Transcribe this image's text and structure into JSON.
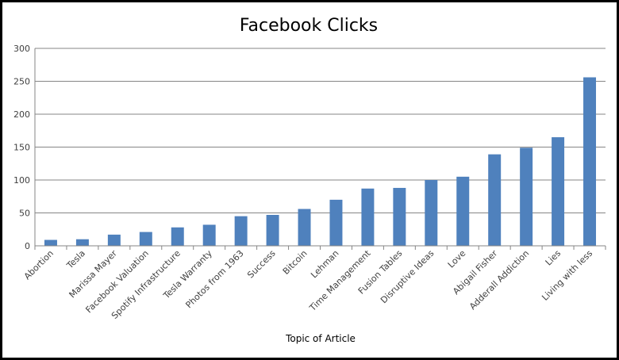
{
  "chart_data": {
    "type": "bar",
    "title": "Facebook Clicks",
    "xlabel": "Topic of Article",
    "ylabel": "",
    "ylim": [
      0,
      300
    ],
    "yticks": [
      0,
      50,
      100,
      150,
      200,
      250,
      300
    ],
    "grid": true,
    "legend": "none",
    "bar_color": "#4f81bd",
    "categories": [
      "Abortion",
      "Tesla",
      "Marissa Mayer",
      "Facebook Valuation",
      "Spotify Infrastructure",
      "Tesla Warranty",
      "Photos from 1963",
      "Success",
      "Bitcoin",
      "Lehman",
      "Time Management",
      "Fusion Tables",
      "Disruptive Ideas",
      "Love",
      "Abigail Fisher",
      "Adderall Addiction",
      "Lies",
      "Living with less"
    ],
    "values": [
      9,
      10,
      17,
      21,
      28,
      32,
      45,
      47,
      56,
      70,
      87,
      88,
      100,
      105,
      139,
      149,
      165,
      256
    ]
  }
}
